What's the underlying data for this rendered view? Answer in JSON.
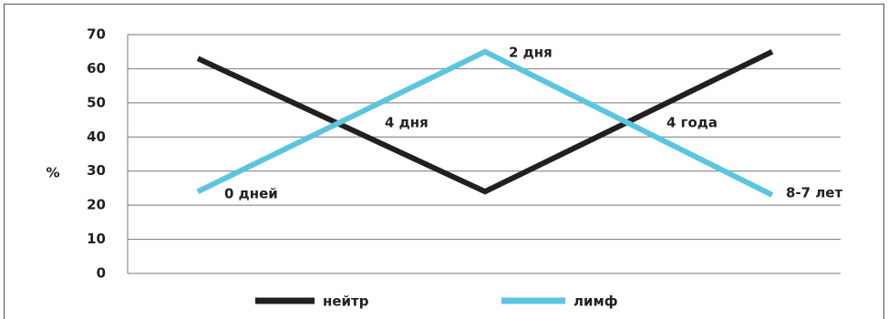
{
  "chart_data": {
    "type": "line",
    "y_label": "%",
    "categories": [
      null,
      null,
      null
    ],
    "series": [
      {
        "name": "нейтр",
        "color": "#231f20",
        "values": [
          63,
          24,
          65
        ]
      },
      {
        "name": "лимф",
        "color": "#5bc5e0",
        "values": [
          24,
          65,
          23
        ]
      }
    ],
    "annotations": [
      "0 дней",
      "4 дня",
      "2 дня",
      "4 года",
      "8-7 лет"
    ],
    "ylim": [
      0,
      70
    ],
    "yticks": [
      0,
      10,
      20,
      30,
      40,
      50,
      60,
      70
    ],
    "grid": true,
    "legend": "bottom"
  }
}
